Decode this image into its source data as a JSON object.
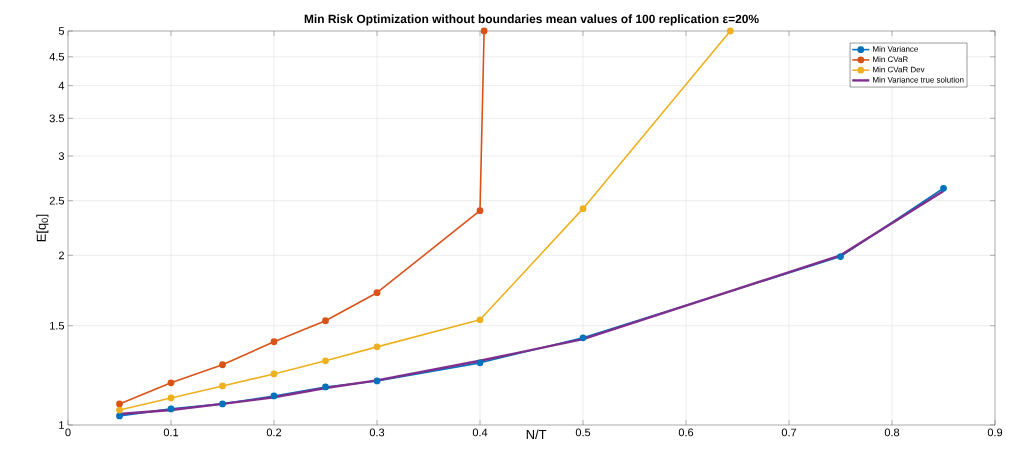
{
  "chart_data": {
    "type": "line",
    "title": "Min Risk Optimization without boundaries mean values of 100 replication  ε=20%",
    "xlabel": "N/T",
    "ylabel": "E[q$_{0}$]",
    "log": "y",
    "grid": true,
    "legend": "top right",
    "marker": "circle",
    "line_style": "solid",
    "xlim": [
      0,
      0.9
    ],
    "xticks": [
      0,
      0.1,
      0.2,
      0.3,
      0.4,
      0.5,
      0.6,
      0.7,
      0.8,
      0.9
    ],
    "ylim": [
      1,
      5
    ],
    "yticks": [
      1,
      1.5,
      2,
      2.5,
      3,
      3.5,
      4,
      4.5,
      5
    ],
    "series": [
      {
        "name": "Min Variance",
        "color": "#0072bd",
        "x": [
          0.05,
          0.1,
          0.15,
          0.2,
          0.25,
          0.3,
          0.4,
          0.5,
          0.75,
          0.85
        ],
        "values": [
          1.038,
          1.068,
          1.09,
          1.126,
          1.168,
          1.197,
          1.289,
          1.428,
          1.99,
          2.63
        ]
      },
      {
        "name": "Min CVaR",
        "color": "#d95319",
        "x": [
          0.05,
          0.1,
          0.15,
          0.2,
          0.25,
          0.3,
          0.4,
          0.404
        ],
        "values": [
          1.09,
          1.188,
          1.279,
          1.405,
          1.531,
          1.717,
          2.4,
          5
        ]
      },
      {
        "name": "Min CVaR Dev",
        "color": "#edb120",
        "x": [
          0.05,
          0.1,
          0.15,
          0.2,
          0.25,
          0.3,
          0.4,
          0.5,
          0.643
        ],
        "values": [
          1.063,
          1.117,
          1.173,
          1.232,
          1.3,
          1.376,
          1.537,
          2.42,
          5
        ]
      },
      {
        "name": "Min Variance true solution",
        "color": "#7e2f8e",
        "marker": "none",
        "x": [
          0.05,
          0.1,
          0.15,
          0.2,
          0.25,
          0.3,
          0.4,
          0.5,
          0.75,
          0.85
        ],
        "values": [
          1.046,
          1.063,
          1.09,
          1.12,
          1.163,
          1.2,
          1.3,
          1.42,
          2.0,
          2.6
        ]
      }
    ]
  }
}
